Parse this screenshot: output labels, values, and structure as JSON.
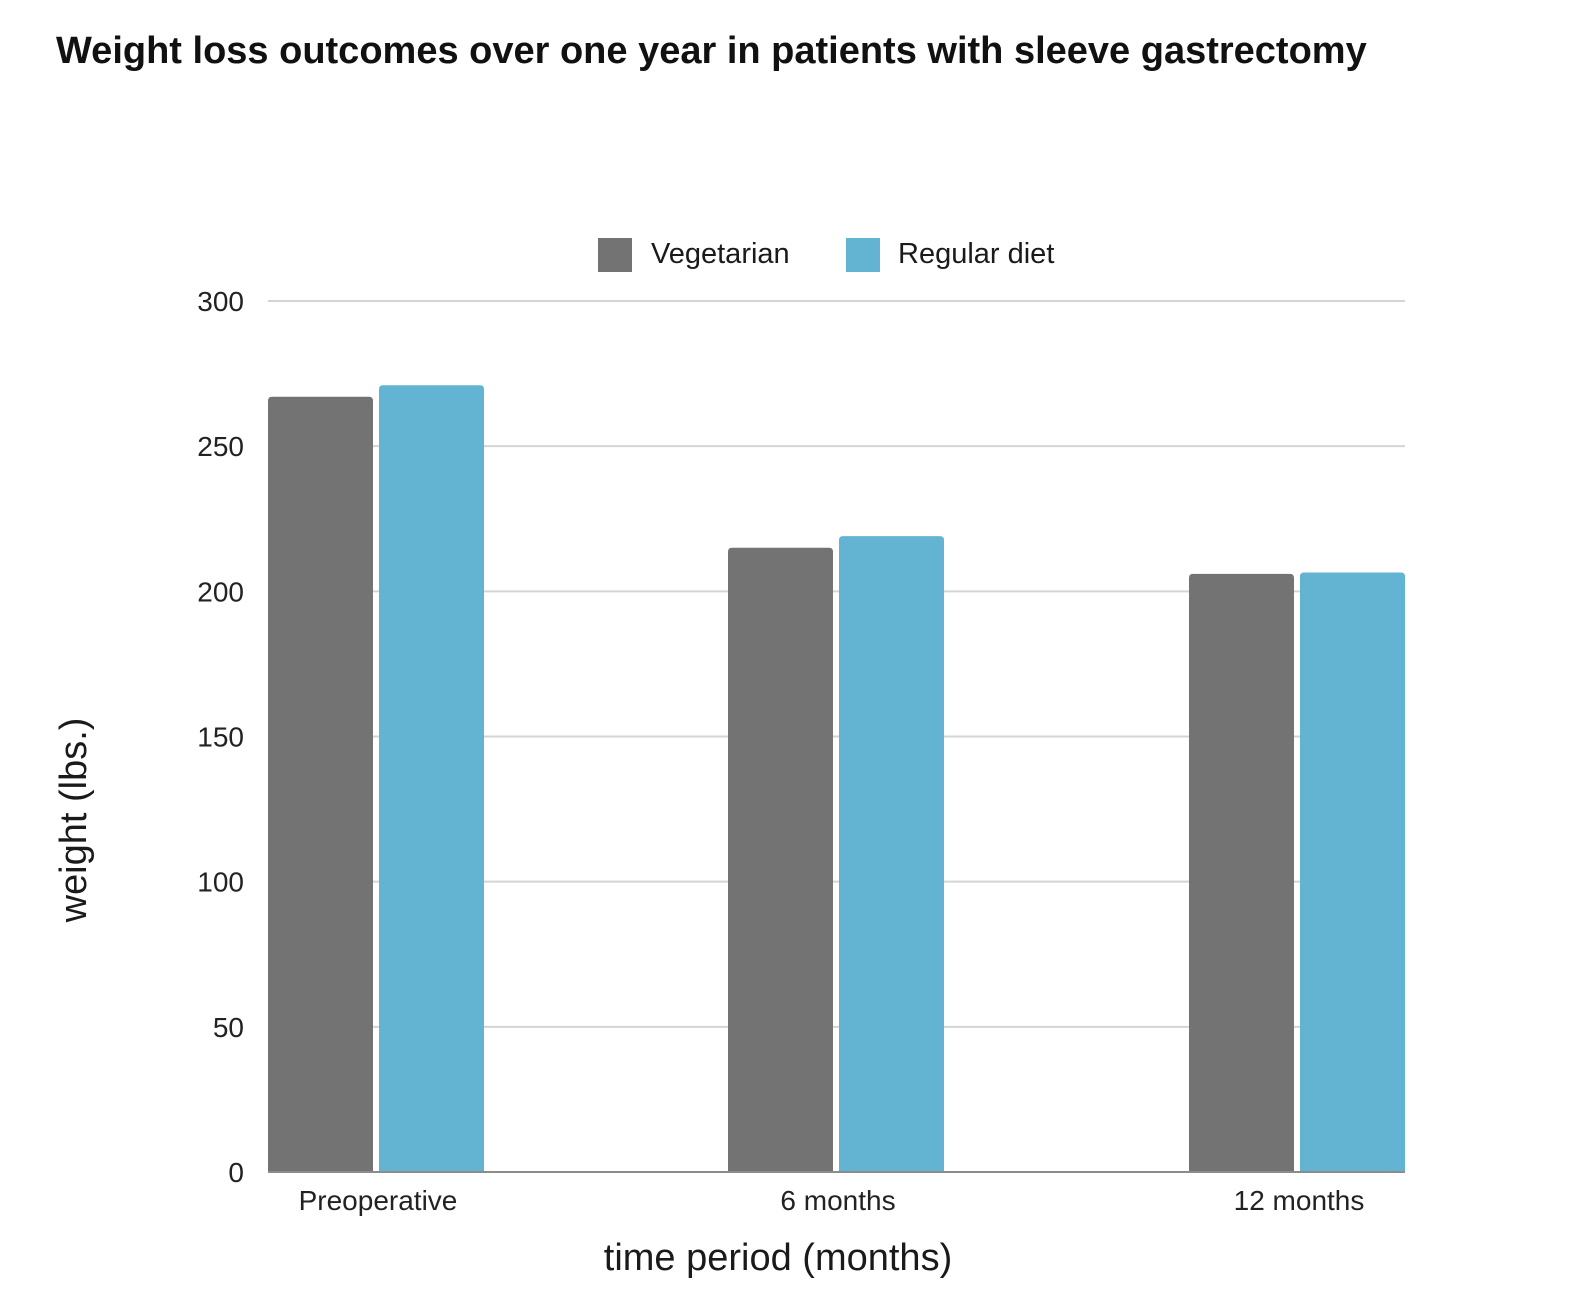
{
  "chart_data": {
    "type": "bar",
    "title": "Weight loss outcomes over one year in patients with sleeve gastrectomy",
    "xlabel": "time period (months)",
    "ylabel": "weight (lbs.)",
    "categories": [
      "Preoperative",
      "6 months",
      "12 months"
    ],
    "series": [
      {
        "name": "Vegetarian",
        "color": "#737373",
        "values": [
          267,
          215,
          206
        ]
      },
      {
        "name": "Regular diet",
        "color": "#63B4D3",
        "values": [
          271,
          219,
          206.5
        ]
      }
    ],
    "ylim": [
      0,
      300
    ],
    "yticks": [
      0,
      50,
      100,
      150,
      200,
      250,
      300
    ],
    "grid": true,
    "legend": "top-center",
    "colors": {
      "grid": "#d4d4d4",
      "axis": "#8c8c8c"
    }
  }
}
